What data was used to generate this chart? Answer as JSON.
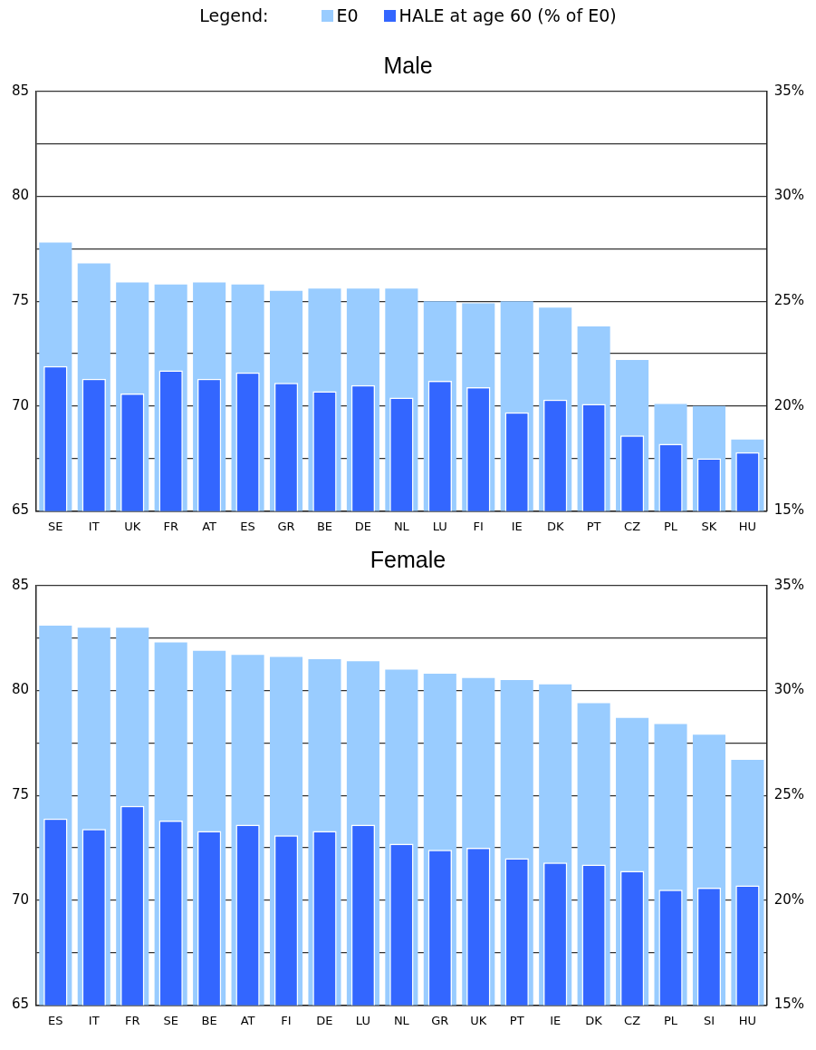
{
  "chart_data": [
    {
      "type": "bar",
      "title": "Male",
      "legend": "top",
      "legend_title": "Legend:",
      "grid": "y",
      "categories": [
        "SE",
        "IT",
        "UK",
        "FR",
        "AT",
        "ES",
        "GR",
        "BE",
        "DE",
        "NL",
        "LU",
        "FI",
        "IE",
        "DK",
        "PT",
        "CZ",
        "PL",
        "SK",
        "HU"
      ],
      "series": [
        {
          "name": "E0",
          "color": "#99ccff",
          "values": [
            77.8,
            76.8,
            75.9,
            75.8,
            75.9,
            75.8,
            75.5,
            75.6,
            75.6,
            75.6,
            75.0,
            74.9,
            75.0,
            74.7,
            73.8,
            72.2,
            70.1,
            70.0,
            68.4
          ]
        },
        {
          "name": "HALE at age 60 (% of E0)",
          "color": "#3366ff",
          "axis": "y2",
          "values": [
            21.9,
            21.3,
            20.6,
            21.7,
            21.3,
            21.6,
            21.1,
            20.7,
            21.0,
            20.4,
            21.2,
            20.9,
            19.7,
            20.3,
            20.1,
            18.6,
            18.2,
            17.5,
            17.8
          ]
        }
      ],
      "ylim": [
        65,
        85
      ],
      "yticks": [
        65,
        {
          "value": 67.5,
          "label": null
        },
        70,
        {
          "value": 72.5,
          "label": null
        },
        75,
        {
          "value": 77.5,
          "label": null
        },
        80,
        {
          "value": 82.5,
          "label": null
        },
        85
      ],
      "y2lim": [
        15,
        35
      ],
      "y2ticks": [
        {
          "value": 15,
          "label": "15%"
        },
        {
          "value": 17.5,
          "label": null
        },
        {
          "value": 20,
          "label": "20%"
        },
        {
          "value": 22.5,
          "label": null
        },
        {
          "value": 25,
          "label": "25%"
        },
        {
          "value": 27.5,
          "label": null
        },
        {
          "value": 30,
          "label": "30%"
        },
        {
          "value": 32.5,
          "label": null
        },
        {
          "value": 35,
          "label": "35%"
        }
      ]
    },
    {
      "type": "bar",
      "title": "Female",
      "grid": "y",
      "categories": [
        "ES",
        "IT",
        "FR",
        "SE",
        "BE",
        "AT",
        "FI",
        "DE",
        "LU",
        "NL",
        "GR",
        "UK",
        "PT",
        "IE",
        "DK",
        "CZ",
        "PL",
        "SI",
        "HU"
      ],
      "series": [
        {
          "color": "#99ccff",
          "values": [
            83.1,
            83.0,
            83.0,
            82.3,
            81.9,
            81.7,
            81.6,
            81.5,
            81.4,
            81.0,
            80.8,
            80.6,
            80.5,
            80.3,
            79.4,
            78.7,
            78.4,
            77.9,
            76.7
          ]
        },
        {
          "color": "#3366ff",
          "axis": "y2",
          "values": [
            23.9,
            23.4,
            24.5,
            23.8,
            23.3,
            23.6,
            23.1,
            23.3,
            23.6,
            22.7,
            22.4,
            22.5,
            22.0,
            21.8,
            21.7,
            21.4,
            20.5,
            20.6,
            20.7
          ]
        }
      ],
      "ylim": [
        65,
        85
      ],
      "yticks": [
        65,
        {
          "value": 67.5,
          "label": null
        },
        70,
        {
          "value": 72.5,
          "label": null
        },
        75,
        {
          "value": 77.5,
          "label": null
        },
        80,
        {
          "value": 82.5,
          "label": null
        },
        85
      ],
      "y2lim": [
        15,
        35
      ],
      "y2ticks": [
        {
          "value": 15,
          "label": "15%"
        },
        {
          "value": 17.5,
          "label": null
        },
        {
          "value": 20,
          "label": "20%"
        },
        {
          "value": 22.5,
          "label": null
        },
        {
          "value": 25,
          "label": "25%"
        },
        {
          "value": 27.5,
          "label": null
        },
        {
          "value": 30,
          "label": "30%"
        },
        {
          "value": 32.5,
          "label": null
        },
        {
          "value": 35,
          "label": "35%"
        }
      ]
    }
  ]
}
